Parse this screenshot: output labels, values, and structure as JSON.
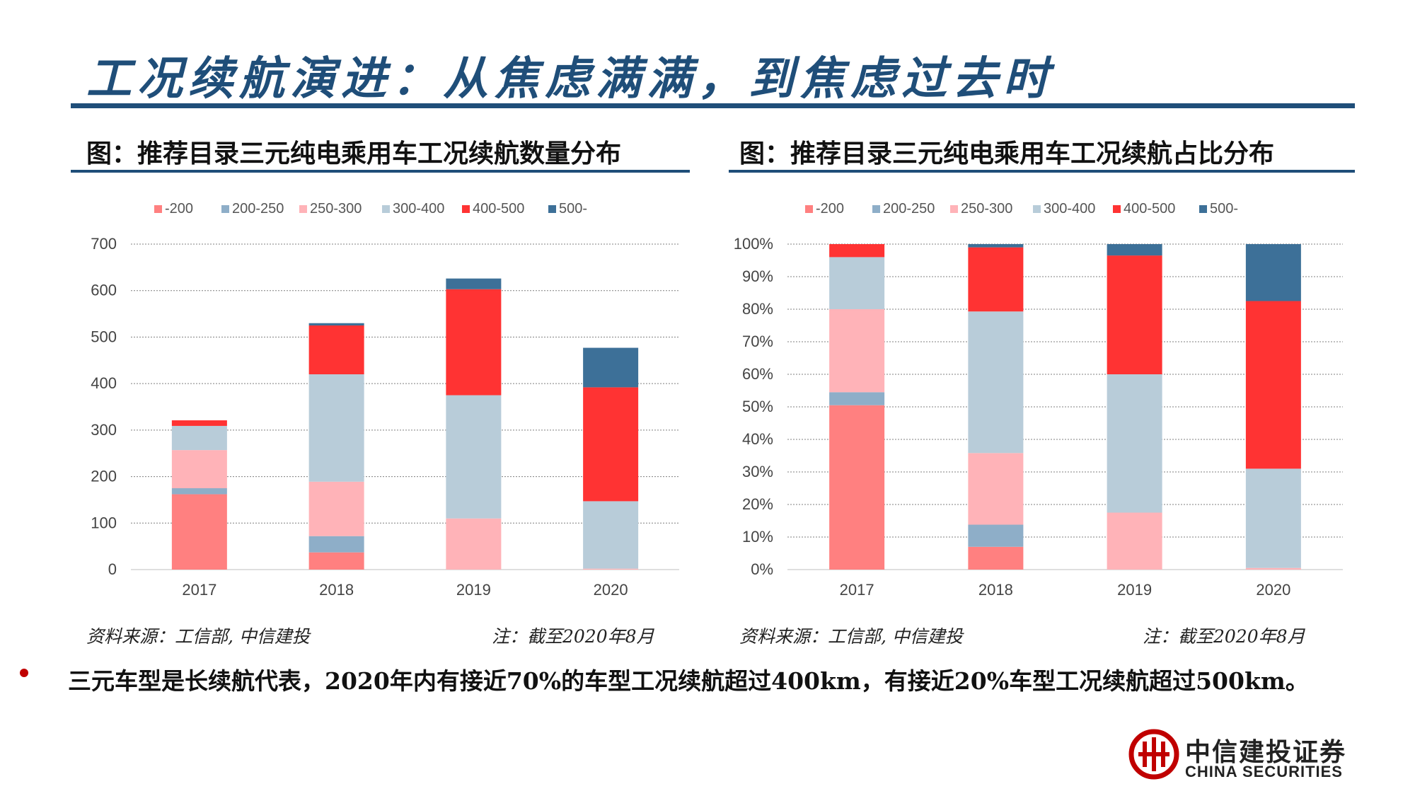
{
  "page": {
    "title": "工况续航演进：从焦虑满满，到焦虑过去时",
    "bullet": "三元车型是长续航代表，2020年内有接近70%的车型工况续航超过400km，有接近20%车型工况续航超过500km。"
  },
  "logo": {
    "name_cn": "中信建投证券",
    "name_en": "CHINA SECURITIES",
    "color": "#c00000"
  },
  "charts": [
    {
      "subtitle": "图：推荐目录三元纯电乘用车工况续航数量分布",
      "source": "资料来源：工信部, 中信建投",
      "note": "注：截至2020年8月"
    },
    {
      "subtitle": "图：推荐目录三元纯电乘用车工况续航占比分布",
      "source": "资料来源：工信部, 中信建投",
      "note": "注：截至2020年8月"
    }
  ],
  "chart_data": [
    {
      "type": "bar",
      "stacked": true,
      "categories": [
        "2017",
        "2018",
        "2019",
        "2020"
      ],
      "series": [
        {
          "name": "-200",
          "color": "#ff8080",
          "values": [
            162,
            37,
            0,
            0
          ]
        },
        {
          "name": "200-250",
          "color": "#8eaec8",
          "values": [
            13,
            35,
            0,
            0
          ]
        },
        {
          "name": "250-300",
          "color": "#ffb3b8",
          "values": [
            82,
            117,
            110,
            2
          ]
        },
        {
          "name": "300-400",
          "color": "#b8ccd9",
          "values": [
            52,
            231,
            265,
            145
          ]
        },
        {
          "name": "400-500",
          "color": "#ff3333",
          "values": [
            12,
            105,
            228,
            245
          ]
        },
        {
          "name": "500-",
          "color": "#3d7098",
          "values": [
            0,
            5,
            23,
            85
          ]
        }
      ],
      "yticks": [
        "0",
        "100",
        "200",
        "300",
        "400",
        "500",
        "600",
        "700"
      ],
      "ylim": [
        0,
        700
      ],
      "grid": true,
      "legend_position": "top"
    },
    {
      "type": "bar",
      "stacked": true,
      "percent": true,
      "categories": [
        "2017",
        "2018",
        "2019",
        "2020"
      ],
      "series": [
        {
          "name": "-200",
          "color": "#ff8080",
          "values": [
            50.5,
            7.0,
            0,
            0
          ]
        },
        {
          "name": "200-250",
          "color": "#8eaec8",
          "values": [
            4.0,
            6.8,
            0,
            0
          ]
        },
        {
          "name": "250-300",
          "color": "#ffb3b8",
          "values": [
            25.5,
            22.0,
            17.5,
            0.5
          ]
        },
        {
          "name": "300-400",
          "color": "#b8ccd9",
          "values": [
            16.0,
            43.5,
            42.5,
            30.5
          ]
        },
        {
          "name": "400-500",
          "color": "#ff3333",
          "values": [
            4.0,
            19.7,
            36.5,
            51.5
          ]
        },
        {
          "name": "500-",
          "color": "#3d7098",
          "values": [
            0,
            1.0,
            3.5,
            17.5
          ]
        }
      ],
      "yticks": [
        "0%",
        "10%",
        "20%",
        "30%",
        "40%",
        "50%",
        "60%",
        "70%",
        "80%",
        "90%",
        "100%"
      ],
      "ylim": [
        0,
        100
      ],
      "grid": true,
      "legend_position": "top"
    }
  ]
}
